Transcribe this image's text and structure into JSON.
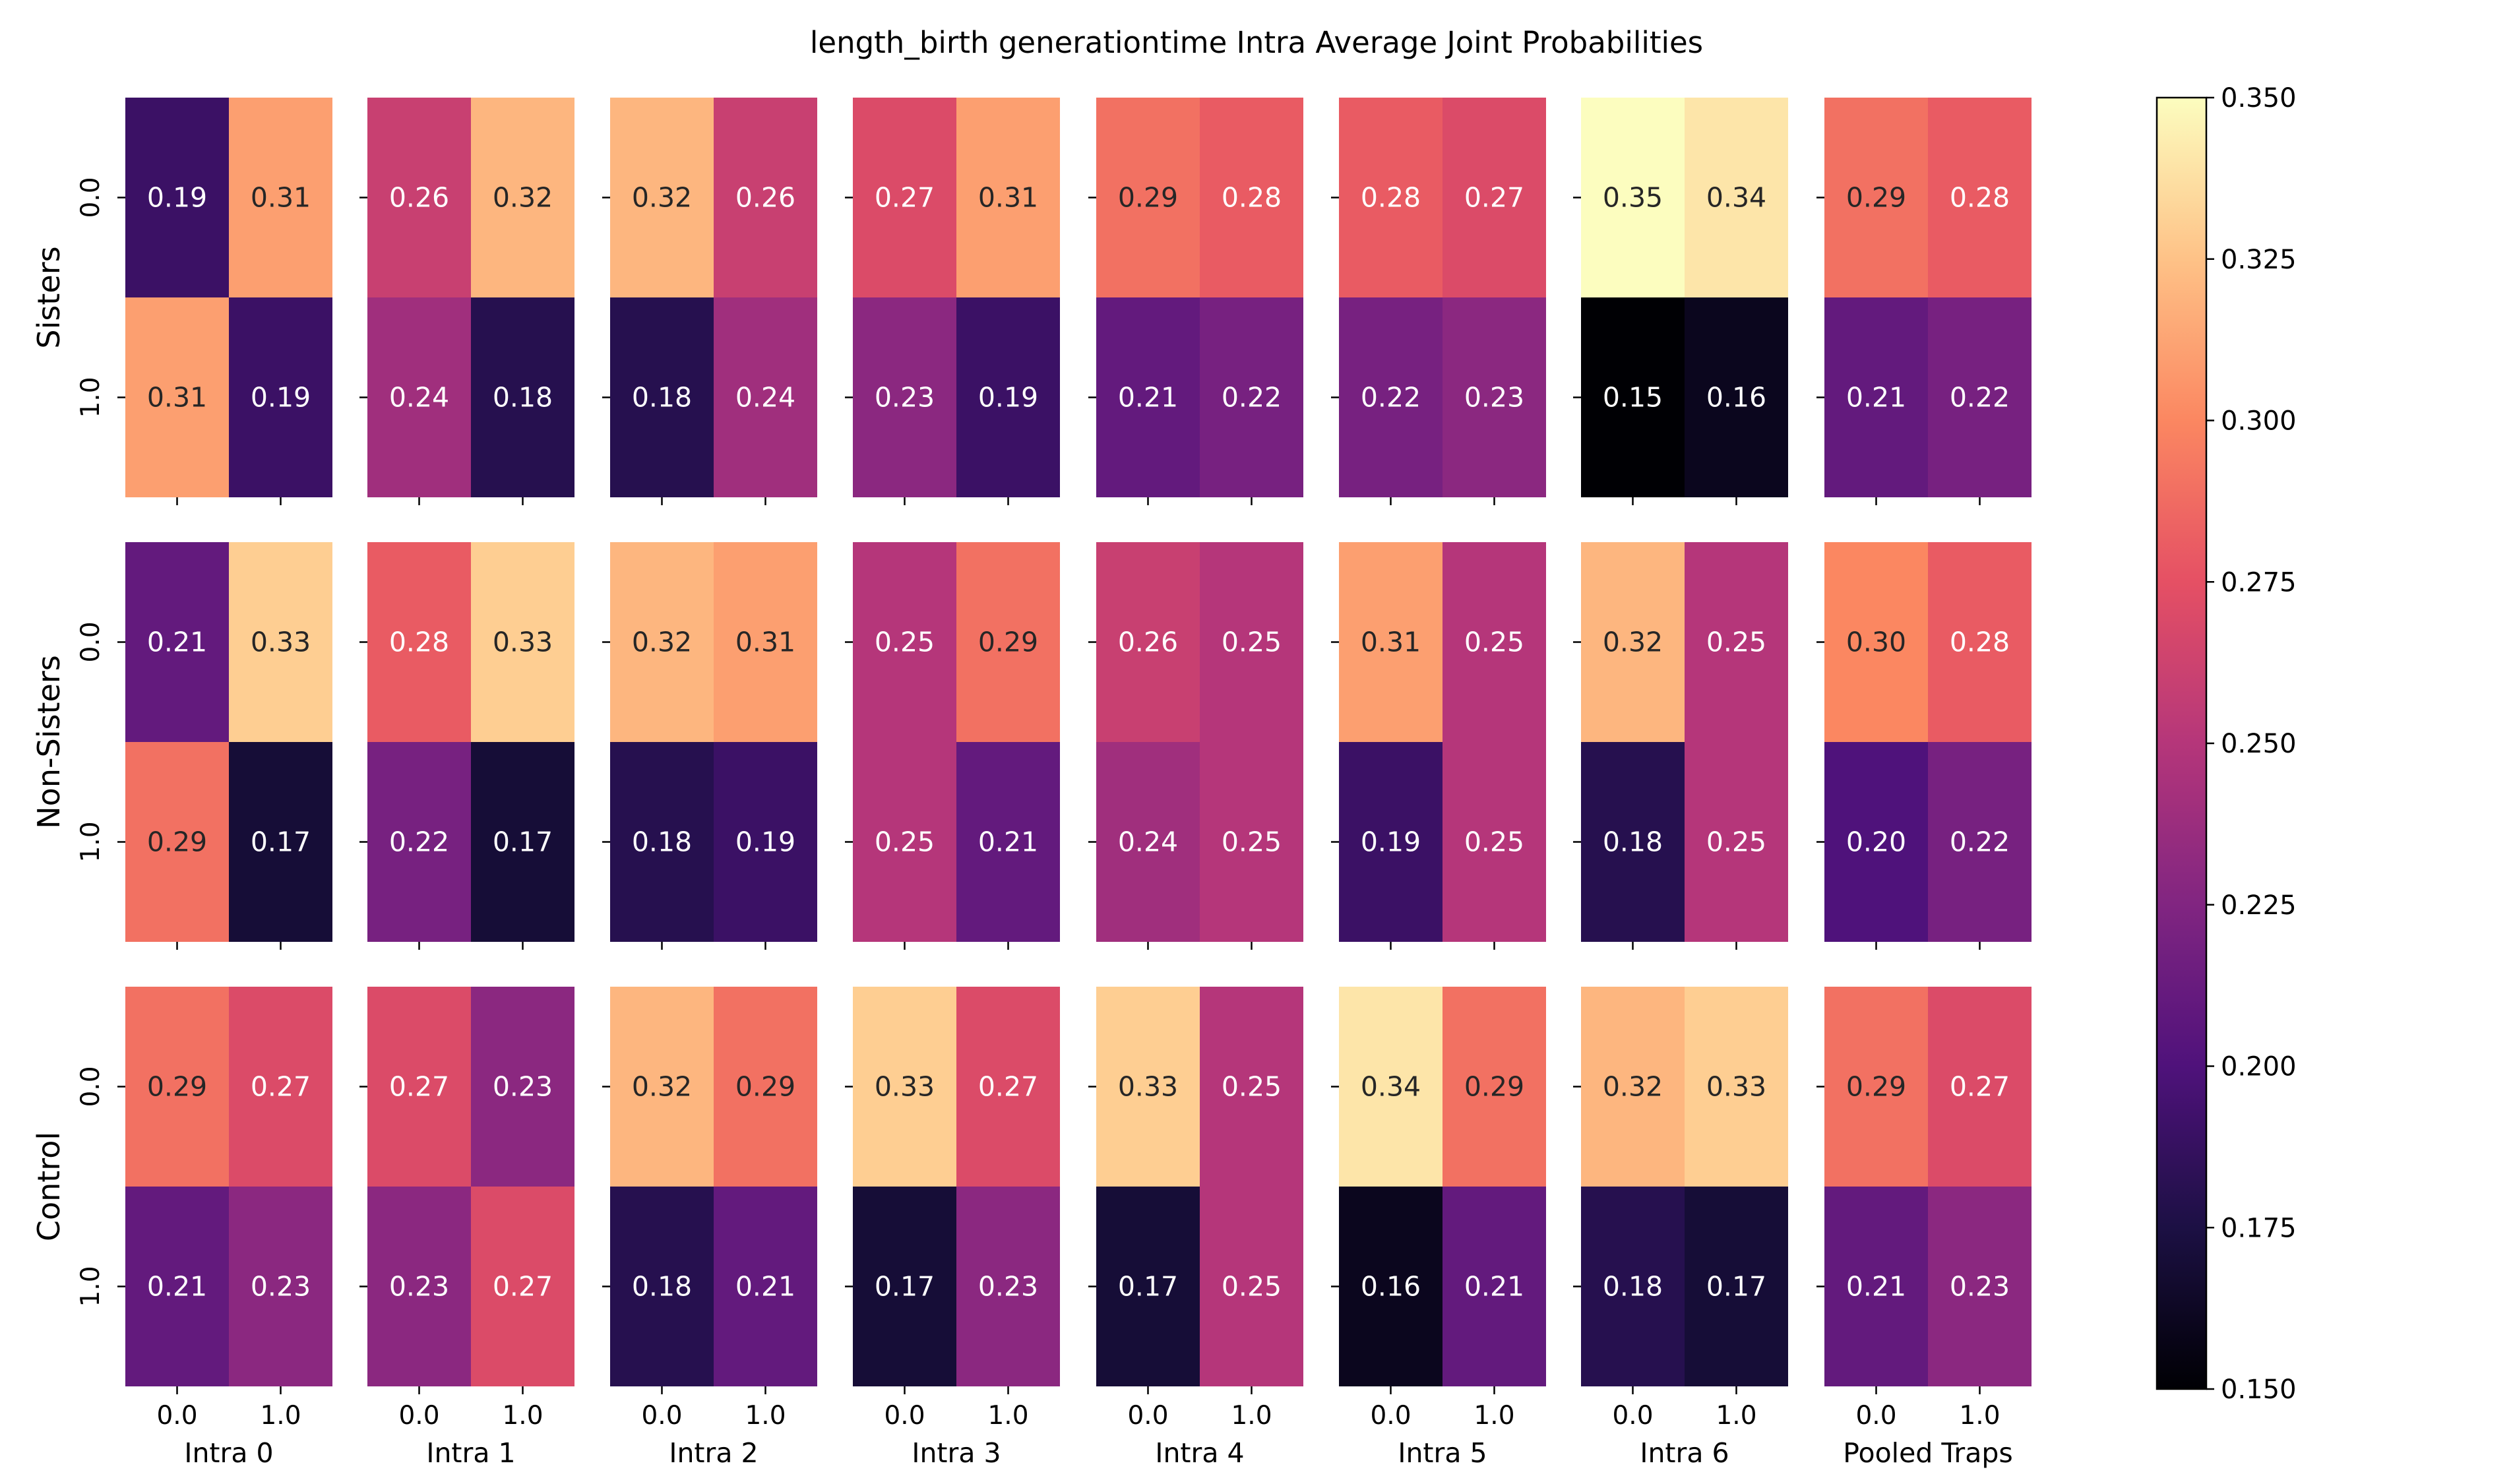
{
  "chart_data": {
    "type": "heatmap",
    "title": "length_birth generationtime Intra Average Joint Probabilities",
    "row_groups": [
      "Sisters",
      "Non-Sisters",
      "Control"
    ],
    "columns": [
      "Intra 0",
      "Intra 1",
      "Intra 2",
      "Intra 3",
      "Intra 4",
      "Intra 5",
      "Intra 6",
      "Pooled Traps"
    ],
    "tick_labels": [
      "0.0",
      "1.0"
    ],
    "colormap": "magma",
    "colorbar": {
      "min": 0.15,
      "max": 0.35,
      "ticks": [
        "0.150",
        "0.175",
        "0.200",
        "0.225",
        "0.250",
        "0.275",
        "0.300",
        "0.325",
        "0.350"
      ]
    },
    "values": [
      [
        [
          [
            0.19,
            0.31
          ],
          [
            0.31,
            0.19
          ]
        ],
        [
          [
            0.26,
            0.32
          ],
          [
            0.24,
            0.18
          ]
        ],
        [
          [
            0.32,
            0.26
          ],
          [
            0.18,
            0.24
          ]
        ],
        [
          [
            0.27,
            0.31
          ],
          [
            0.23,
            0.19
          ]
        ],
        [
          [
            0.29,
            0.28
          ],
          [
            0.21,
            0.22
          ]
        ],
        [
          [
            0.28,
            0.27
          ],
          [
            0.22,
            0.23
          ]
        ],
        [
          [
            0.35,
            0.34
          ],
          [
            0.15,
            0.16
          ]
        ],
        [
          [
            0.29,
            0.28
          ],
          [
            0.21,
            0.22
          ]
        ]
      ],
      [
        [
          [
            0.21,
            0.33
          ],
          [
            0.29,
            0.17
          ]
        ],
        [
          [
            0.28,
            0.33
          ],
          [
            0.22,
            0.17
          ]
        ],
        [
          [
            0.32,
            0.31
          ],
          [
            0.18,
            0.19
          ]
        ],
        [
          [
            0.25,
            0.29
          ],
          [
            0.25,
            0.21
          ]
        ],
        [
          [
            0.26,
            0.25
          ],
          [
            0.24,
            0.25
          ]
        ],
        [
          [
            0.31,
            0.25
          ],
          [
            0.19,
            0.25
          ]
        ],
        [
          [
            0.32,
            0.25
          ],
          [
            0.18,
            0.25
          ]
        ],
        [
          [
            0.3,
            0.28
          ],
          [
            0.2,
            0.22
          ]
        ]
      ],
      [
        [
          [
            0.29,
            0.27
          ],
          [
            0.21,
            0.23
          ]
        ],
        [
          [
            0.27,
            0.23
          ],
          [
            0.23,
            0.27
          ]
        ],
        [
          [
            0.32,
            0.29
          ],
          [
            0.18,
            0.21
          ]
        ],
        [
          [
            0.33,
            0.27
          ],
          [
            0.17,
            0.23
          ]
        ],
        [
          [
            0.33,
            0.25
          ],
          [
            0.17,
            0.25
          ]
        ],
        [
          [
            0.34,
            0.29
          ],
          [
            0.16,
            0.21
          ]
        ],
        [
          [
            0.32,
            0.33
          ],
          [
            0.18,
            0.17
          ]
        ],
        [
          [
            0.29,
            0.27
          ],
          [
            0.21,
            0.23
          ]
        ]
      ]
    ]
  }
}
